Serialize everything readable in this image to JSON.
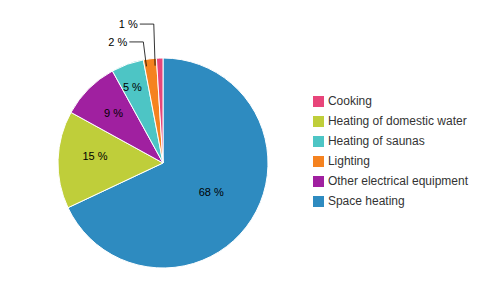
{
  "chart_data": {
    "type": "pie",
    "categories": [
      "Space heating",
      "Heating of domestic water",
      "Other electrical equipment",
      "Heating of saunas",
      "Lighting",
      "Cooking"
    ],
    "values": [
      68,
      15,
      9,
      5,
      2,
      1
    ],
    "value_labels": [
      "68 %",
      "15 %",
      "9 %",
      "5 %",
      "2 %",
      "1 %"
    ],
    "colors": [
      "#2E8BC0",
      "#BFCE3A",
      "#A020A0",
      "#4DC5C5",
      "#F5821F",
      "#E8457A"
    ],
    "data_labels": true,
    "legend": "right"
  }
}
